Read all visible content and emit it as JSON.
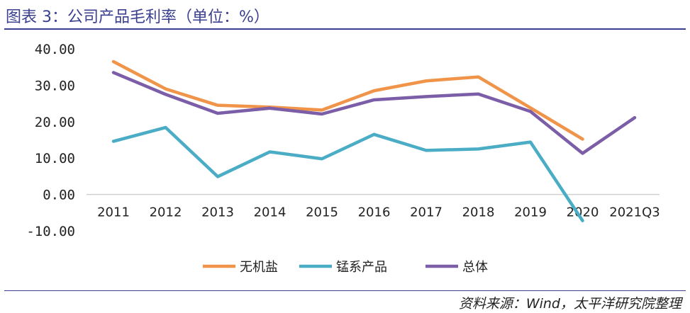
{
  "header": {
    "title": "图表 3：公司产品毛利率（单位：%）"
  },
  "footer": {
    "source": "资料来源：Wind，太平洋研究院整理"
  },
  "chart_data": {
    "type": "line",
    "title": "图表 3：公司产品毛利率（单位：%）",
    "xlabel": "",
    "ylabel": "",
    "categories": [
      "2011",
      "2012",
      "2013",
      "2014",
      "2015",
      "2016",
      "2017",
      "2018",
      "2019",
      "2020",
      "2021Q3"
    ],
    "y_tick_labels": [
      "40.00",
      "30.00",
      "20.00",
      "10.00",
      "0.00",
      "-10.00"
    ],
    "ylim": [
      -10,
      40
    ],
    "grid": false,
    "legend_position": "bottom",
    "series": [
      {
        "name": "无机盐",
        "color": "#f0944a",
        "values": [
          36.5,
          29.0,
          24.5,
          24.0,
          23.2,
          28.5,
          31.2,
          32.3,
          23.8,
          15.2,
          null
        ]
      },
      {
        "name": "锰系产品",
        "color": "#4bacc6",
        "values": [
          14.6,
          18.4,
          4.9,
          11.7,
          9.8,
          16.5,
          12.1,
          12.5,
          14.4,
          -7.2,
          null
        ]
      },
      {
        "name": "总体",
        "color": "#7b5ea7",
        "values": [
          33.5,
          27.5,
          22.3,
          23.7,
          22.1,
          26.0,
          26.9,
          27.6,
          22.8,
          11.3,
          21.1
        ]
      }
    ]
  }
}
